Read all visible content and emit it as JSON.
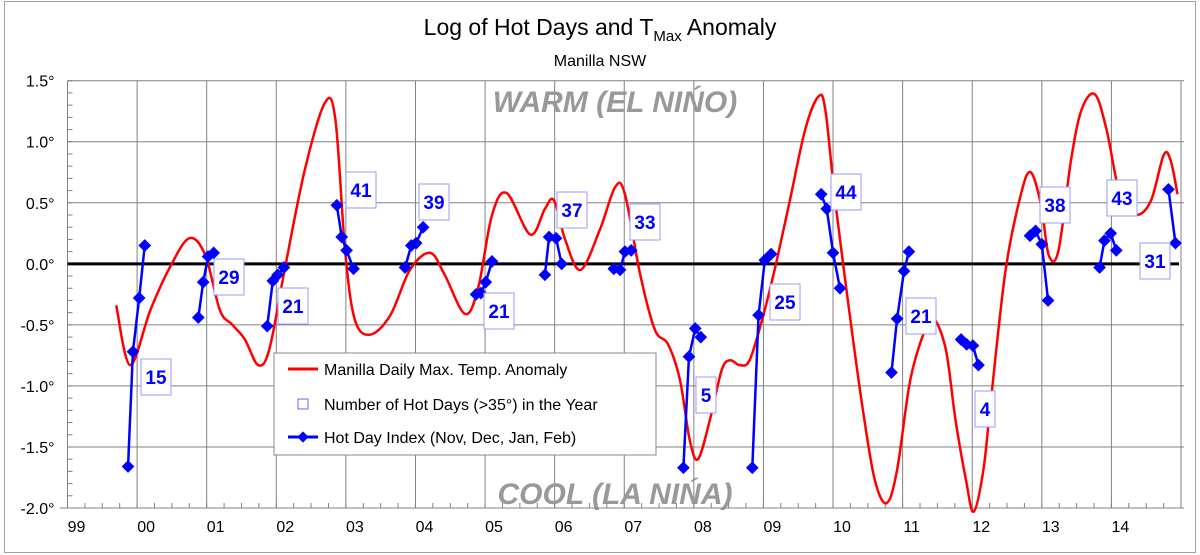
{
  "chart_data": {
    "type": "line",
    "title": "Log of Hot Days and T",
    "title_sub": "Max",
    "title_end": " Anomaly",
    "subtitle": "Manilla NSW",
    "annotations": {
      "warm": "WARM (EL NIŃO)",
      "cool": "COOL (LA NIŃA)"
    },
    "xlim": [
      1999,
      2015
    ],
    "ylim": [
      -2.0,
      1.5
    ],
    "x_tick_labels": [
      "99",
      "00",
      "01",
      "02",
      "03",
      "04",
      "05",
      "06",
      "07",
      "08",
      "09",
      "10",
      "11",
      "12",
      "13",
      "14"
    ],
    "y_tick_labels": [
      "1.5°",
      "1.0°",
      "0.5°",
      "0.0°",
      "-0.5°",
      "-1.0°",
      "-1.5°",
      "-2.0°"
    ],
    "y_ticks": [
      1.5,
      1.0,
      0.5,
      0.0,
      -0.5,
      -1.0,
      -1.5,
      -2.0
    ],
    "grid": true,
    "legend_placement": "center-left-bottom",
    "legend": [
      "Manilla Daily Max. Temp. Anomaly",
      "Number of Hot Days (>35°) in the Year",
      "Hot Day Index (Nov, Dec, Jan, Feb)"
    ],
    "colors": {
      "anomaly": "#ff0000",
      "hot_day_index": "#0000ff",
      "annotation": "#999999",
      "zero_line": "#000000"
    },
    "series": [
      {
        "name": "Manilla Daily Max. Temp. Anomaly",
        "points": [
          [
            1999.7,
            -0.34
          ],
          [
            1999.9,
            -0.83
          ],
          [
            2000.19,
            -0.38
          ],
          [
            2000.47,
            -0.03
          ],
          [
            2000.75,
            0.21
          ],
          [
            2000.98,
            0.07
          ],
          [
            2001.19,
            -0.38
          ],
          [
            2001.37,
            -0.5
          ],
          [
            2001.55,
            -0.62
          ],
          [
            2001.74,
            -0.83
          ],
          [
            2001.9,
            -0.7
          ],
          [
            2002.12,
            -0.05
          ],
          [
            2002.41,
            0.77
          ],
          [
            2002.7,
            1.32
          ],
          [
            2002.85,
            1.18
          ],
          [
            2002.99,
            0.1
          ],
          [
            2003.13,
            -0.46
          ],
          [
            2003.35,
            -0.58
          ],
          [
            2003.64,
            -0.42
          ],
          [
            2003.92,
            -0.05
          ],
          [
            2004.21,
            0.09
          ],
          [
            2004.42,
            -0.09
          ],
          [
            2004.71,
            -0.41
          ],
          [
            2004.9,
            -0.2
          ],
          [
            2005.1,
            0.4
          ],
          [
            2005.31,
            0.58
          ],
          [
            2005.65,
            0.24
          ],
          [
            2005.86,
            0.45
          ],
          [
            2005.99,
            0.52
          ],
          [
            2006.15,
            0.2
          ],
          [
            2006.37,
            -0.05
          ],
          [
            2006.65,
            0.28
          ],
          [
            2006.87,
            0.63
          ],
          [
            2007.01,
            0.57
          ],
          [
            2007.23,
            -0.09
          ],
          [
            2007.44,
            -0.54
          ],
          [
            2007.63,
            -0.66
          ],
          [
            2007.8,
            -0.95
          ],
          [
            2007.94,
            -1.44
          ],
          [
            2008.06,
            -1.6
          ],
          [
            2008.23,
            -1.28
          ],
          [
            2008.4,
            -0.87
          ],
          [
            2008.52,
            -0.79
          ],
          [
            2008.66,
            -0.83
          ],
          [
            2008.8,
            -0.79
          ],
          [
            2008.98,
            -0.46
          ],
          [
            2009.16,
            -0.05
          ],
          [
            2009.38,
            0.52
          ],
          [
            2009.6,
            1.1
          ],
          [
            2009.79,
            1.37
          ],
          [
            2009.89,
            1.26
          ],
          [
            2010.03,
            0.52
          ],
          [
            2010.25,
            -0.46
          ],
          [
            2010.43,
            -1.2
          ],
          [
            2010.6,
            -1.77
          ],
          [
            2010.77,
            -1.96
          ],
          [
            2010.92,
            -1.69
          ],
          [
            2011.11,
            -0.95
          ],
          [
            2011.32,
            -0.54
          ],
          [
            2011.44,
            -0.44
          ],
          [
            2011.62,
            -0.7
          ],
          [
            2011.76,
            -1.28
          ],
          [
            2011.91,
            -1.77
          ],
          [
            2012.02,
            -2.03
          ],
          [
            2012.16,
            -1.69
          ],
          [
            2012.27,
            -1.11
          ],
          [
            2012.48,
            -0.05
          ],
          [
            2012.7,
            0.57
          ],
          [
            2012.84,
            0.75
          ],
          [
            2012.99,
            0.48
          ],
          [
            2013.1,
            0.07
          ],
          [
            2013.24,
            0.11
          ],
          [
            2013.42,
            0.85
          ],
          [
            2013.57,
            1.26
          ],
          [
            2013.76,
            1.39
          ],
          [
            2013.93,
            1.1
          ],
          [
            2014.14,
            0.52
          ],
          [
            2014.36,
            0.4
          ],
          [
            2014.57,
            0.52
          ],
          [
            2014.75,
            0.89
          ],
          [
            2014.85,
            0.85
          ],
          [
            2014.95,
            0.57
          ]
        ]
      },
      {
        "name": "Hot Day Index (Nov, Dec, Jan, Feb)",
        "groups": [
          {
            "hot_days": "15",
            "points": [
              [
                1999.87,
                -1.66
              ],
              [
                1999.94,
                -0.72
              ],
              [
                2000.03,
                -0.28
              ],
              [
                2000.11,
                0.15
              ]
            ]
          },
          {
            "hot_days": "29",
            "points": [
              [
                2000.88,
                -0.44
              ],
              [
                2000.95,
                -0.15
              ],
              [
                2001.02,
                0.06
              ],
              [
                2001.1,
                0.09
              ]
            ]
          },
          {
            "hot_days": "21",
            "points": [
              [
                2001.87,
                -0.51
              ],
              [
                2001.95,
                -0.14
              ],
              [
                2002.02,
                -0.09
              ],
              [
                2002.11,
                -0.03
              ]
            ]
          },
          {
            "hot_days": "41",
            "points": [
              [
                2002.87,
                0.48
              ],
              [
                2002.94,
                0.22
              ],
              [
                2003.01,
                0.11
              ],
              [
                2003.11,
                -0.04
              ]
            ]
          },
          {
            "hot_days": "39",
            "points": [
              [
                2003.85,
                -0.03
              ],
              [
                2003.94,
                0.15
              ],
              [
                2004.01,
                0.17
              ],
              [
                2004.11,
                0.3
              ]
            ]
          },
          {
            "hot_days": "21",
            "points": [
              [
                2004.87,
                -0.25
              ],
              [
                2004.94,
                -0.24
              ],
              [
                2005.01,
                -0.15
              ],
              [
                2005.1,
                0.02
              ]
            ]
          },
          {
            "hot_days": "37",
            "points": [
              [
                2005.86,
                -0.09
              ],
              [
                2005.92,
                0.22
              ],
              [
                2006.02,
                0.21
              ],
              [
                2006.1,
                0.0
              ]
            ]
          },
          {
            "hot_days": "33",
            "points": [
              [
                2006.85,
                -0.04
              ],
              [
                2006.94,
                -0.05
              ],
              [
                2007.01,
                0.1
              ],
              [
                2007.1,
                0.11
              ]
            ]
          },
          {
            "hot_days": "5",
            "points": [
              [
                2007.85,
                -1.67
              ],
              [
                2007.93,
                -0.76
              ],
              [
                2008.02,
                -0.53
              ],
              [
                2008.1,
                -0.6
              ]
            ]
          },
          {
            "hot_days": "25",
            "points": [
              [
                2008.84,
                -1.67
              ],
              [
                2008.93,
                -0.42
              ],
              [
                2009.02,
                0.03
              ],
              [
                2009.11,
                0.08
              ]
            ]
          },
          {
            "hot_days": "44",
            "points": [
              [
                2009.83,
                0.57
              ],
              [
                2009.91,
                0.45
              ],
              [
                2010.0,
                0.09
              ],
              [
                2010.1,
                -0.2
              ]
            ]
          },
          {
            "hot_days": "21",
            "points": [
              [
                2010.84,
                -0.89
              ],
              [
                2010.92,
                -0.45
              ],
              [
                2011.02,
                -0.06
              ],
              [
                2011.09,
                0.1
              ]
            ]
          },
          {
            "hot_days": "4",
            "points": [
              [
                2011.84,
                -0.62
              ],
              [
                2011.92,
                -0.66
              ],
              [
                2012.01,
                -0.67
              ],
              [
                2012.09,
                -0.83
              ]
            ]
          },
          {
            "hot_days": "38",
            "points": [
              [
                2012.83,
                0.23
              ],
              [
                2012.91,
                0.27
              ],
              [
                2013.0,
                0.16
              ],
              [
                2013.09,
                -0.3
              ]
            ]
          },
          {
            "hot_days": "43",
            "points": [
              [
                2013.83,
                -0.03
              ],
              [
                2013.9,
                0.19
              ],
              [
                2013.99,
                0.25
              ],
              [
                2014.07,
                0.11
              ]
            ]
          },
          {
            "hot_days": "31",
            "points": [
              [
                2014.82,
                0.61
              ],
              [
                2014.92,
                0.17
              ]
            ]
          }
        ]
      }
    ]
  }
}
